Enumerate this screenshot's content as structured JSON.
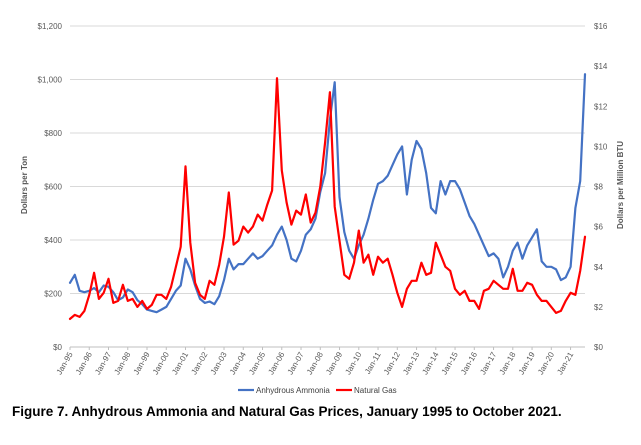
{
  "figure_caption": "Figure 7.  Anhydrous Ammonia and Natural Gas Prices, January 1995 to October 2021.",
  "chart_data": {
    "type": "line",
    "title": "",
    "ylabel_left": "Dollars per Ton",
    "ylabel_right": "Dollars per Million BTU",
    "ylim_left": [
      0,
      1200
    ],
    "ylim_right": [
      0,
      16
    ],
    "yticks_left": [
      "$0",
      "$200",
      "$400",
      "$600",
      "$800",
      "$1,000",
      "$1,200"
    ],
    "yticks_right": [
      "$0",
      "$2",
      "$4",
      "$6",
      "$8",
      "$10",
      "$12",
      "$14",
      "$16"
    ],
    "xticks": [
      "Jan-95",
      "Jan-96",
      "Jan-97",
      "Jan-98",
      "Jan-99",
      "Jan-00",
      "Jan-01",
      "Jan-02",
      "Jan-03",
      "Jan-04",
      "Jan-05",
      "Jan-06",
      "Jan-07",
      "Jan-08",
      "Jan-09",
      "Jan-10",
      "Jan-11",
      "Jan-12",
      "Jan-13",
      "Jan-14",
      "Jan-15",
      "Jan-16",
      "Jan-17",
      "Jan-18",
      "Jan-19",
      "Jan-20",
      "Jan-21"
    ],
    "x_start": "1995-01",
    "x_end": "2021-10",
    "grid": "horizontal",
    "legend_position": "bottom",
    "series": [
      {
        "name": "Anhydrous Ammonia",
        "axis": "left",
        "color": "#4472C4",
        "points": [
          [
            "1995-01",
            240
          ],
          [
            "1995-04",
            270
          ],
          [
            "1995-07",
            210
          ],
          [
            "1995-10",
            205
          ],
          [
            "1996-01",
            210
          ],
          [
            "1996-04",
            220
          ],
          [
            "1996-07",
            205
          ],
          [
            "1996-10",
            230
          ],
          [
            "1997-01",
            225
          ],
          [
            "1997-04",
            205
          ],
          [
            "1997-07",
            175
          ],
          [
            "1997-10",
            185
          ],
          [
            "1998-01",
            215
          ],
          [
            "1998-04",
            205
          ],
          [
            "1998-07",
            175
          ],
          [
            "1998-10",
            160
          ],
          [
            "1999-01",
            140
          ],
          [
            "1999-04",
            135
          ],
          [
            "1999-07",
            130
          ],
          [
            "1999-10",
            140
          ],
          [
            "2000-01",
            150
          ],
          [
            "2000-04",
            180
          ],
          [
            "2000-07",
            210
          ],
          [
            "2000-10",
            230
          ],
          [
            "2001-01",
            330
          ],
          [
            "2001-04",
            290
          ],
          [
            "2001-07",
            230
          ],
          [
            "2001-10",
            180
          ],
          [
            "2002-01",
            165
          ],
          [
            "2002-04",
            170
          ],
          [
            "2002-07",
            160
          ],
          [
            "2002-10",
            190
          ],
          [
            "2003-01",
            250
          ],
          [
            "2003-04",
            330
          ],
          [
            "2003-07",
            290
          ],
          [
            "2003-10",
            310
          ],
          [
            "2004-01",
            310
          ],
          [
            "2004-04",
            330
          ],
          [
            "2004-07",
            350
          ],
          [
            "2004-10",
            330
          ],
          [
            "2005-01",
            340
          ],
          [
            "2005-04",
            360
          ],
          [
            "2005-07",
            380
          ],
          [
            "2005-10",
            420
          ],
          [
            "2006-01",
            450
          ],
          [
            "2006-04",
            400
          ],
          [
            "2006-07",
            330
          ],
          [
            "2006-10",
            320
          ],
          [
            "2007-01",
            360
          ],
          [
            "2007-04",
            420
          ],
          [
            "2007-07",
            440
          ],
          [
            "2007-10",
            480
          ],
          [
            "2008-01",
            580
          ],
          [
            "2008-04",
            650
          ],
          [
            "2008-07",
            850
          ],
          [
            "2008-10",
            990
          ],
          [
            "2009-01",
            560
          ],
          [
            "2009-04",
            430
          ],
          [
            "2009-07",
            360
          ],
          [
            "2009-10",
            330
          ],
          [
            "2010-01",
            380
          ],
          [
            "2010-04",
            420
          ],
          [
            "2010-07",
            480
          ],
          [
            "2010-10",
            550
          ],
          [
            "2011-01",
            610
          ],
          [
            "2011-04",
            620
          ],
          [
            "2011-07",
            640
          ],
          [
            "2011-10",
            680
          ],
          [
            "2012-01",
            720
          ],
          [
            "2012-04",
            750
          ],
          [
            "2012-07",
            570
          ],
          [
            "2012-10",
            700
          ],
          [
            "2013-01",
            770
          ],
          [
            "2013-04",
            740
          ],
          [
            "2013-07",
            650
          ],
          [
            "2013-10",
            520
          ],
          [
            "2014-01",
            500
          ],
          [
            "2014-04",
            620
          ],
          [
            "2014-07",
            570
          ],
          [
            "2014-10",
            620
          ],
          [
            "2015-01",
            620
          ],
          [
            "2015-04",
            590
          ],
          [
            "2015-07",
            540
          ],
          [
            "2015-10",
            490
          ],
          [
            "2016-01",
            460
          ],
          [
            "2016-04",
            420
          ],
          [
            "2016-07",
            380
          ],
          [
            "2016-10",
            340
          ],
          [
            "2017-01",
            350
          ],
          [
            "2017-04",
            330
          ],
          [
            "2017-07",
            260
          ],
          [
            "2017-10",
            300
          ],
          [
            "2018-01",
            360
          ],
          [
            "2018-04",
            390
          ],
          [
            "2018-07",
            330
          ],
          [
            "2018-10",
            380
          ],
          [
            "2019-01",
            410
          ],
          [
            "2019-04",
            440
          ],
          [
            "2019-07",
            320
          ],
          [
            "2019-10",
            300
          ],
          [
            "2020-01",
            300
          ],
          [
            "2020-04",
            290
          ],
          [
            "2020-07",
            250
          ],
          [
            "2020-10",
            260
          ],
          [
            "2021-01",
            300
          ],
          [
            "2021-04",
            520
          ],
          [
            "2021-07",
            620
          ],
          [
            "2021-10",
            1020
          ]
        ]
      },
      {
        "name": "Natural Gas",
        "axis": "right",
        "color": "#FF0000",
        "points": [
          [
            "1995-01",
            1.4
          ],
          [
            "1995-04",
            1.6
          ],
          [
            "1995-07",
            1.5
          ],
          [
            "1995-10",
            1.8
          ],
          [
            "1996-01",
            2.6
          ],
          [
            "1996-04",
            3.7
          ],
          [
            "1996-07",
            2.4
          ],
          [
            "1996-10",
            2.7
          ],
          [
            "1997-01",
            3.4
          ],
          [
            "1997-04",
            2.2
          ],
          [
            "1997-07",
            2.3
          ],
          [
            "1997-10",
            3.1
          ],
          [
            "1998-01",
            2.3
          ],
          [
            "1998-04",
            2.4
          ],
          [
            "1998-07",
            2.0
          ],
          [
            "1998-10",
            2.3
          ],
          [
            "1999-01",
            1.9
          ],
          [
            "1999-04",
            2.1
          ],
          [
            "1999-07",
            2.6
          ],
          [
            "1999-10",
            2.6
          ],
          [
            "2000-01",
            2.4
          ],
          [
            "2000-04",
            3.0
          ],
          [
            "2000-07",
            4.0
          ],
          [
            "2000-10",
            5.0
          ],
          [
            "2001-01",
            9.0
          ],
          [
            "2001-04",
            5.2
          ],
          [
            "2001-07",
            3.2
          ],
          [
            "2001-10",
            2.6
          ],
          [
            "2002-01",
            2.4
          ],
          [
            "2002-04",
            3.3
          ],
          [
            "2002-07",
            3.1
          ],
          [
            "2002-10",
            4.1
          ],
          [
            "2003-01",
            5.5
          ],
          [
            "2003-04",
            7.7
          ],
          [
            "2003-07",
            5.1
          ],
          [
            "2003-10",
            5.3
          ],
          [
            "2004-01",
            6.0
          ],
          [
            "2004-04",
            5.7
          ],
          [
            "2004-07",
            6.0
          ],
          [
            "2004-10",
            6.6
          ],
          [
            "2005-01",
            6.3
          ],
          [
            "2005-04",
            7.1
          ],
          [
            "2005-07",
            7.8
          ],
          [
            "2005-10",
            13.4
          ],
          [
            "2006-01",
            8.8
          ],
          [
            "2006-04",
            7.2
          ],
          [
            "2006-07",
            6.1
          ],
          [
            "2006-10",
            6.8
          ],
          [
            "2007-01",
            6.6
          ],
          [
            "2007-04",
            7.6
          ],
          [
            "2007-07",
            6.2
          ],
          [
            "2007-10",
            6.7
          ],
          [
            "2008-01",
            8.0
          ],
          [
            "2008-04",
            10.2
          ],
          [
            "2008-07",
            12.7
          ],
          [
            "2008-10",
            7.0
          ],
          [
            "2009-01",
            5.3
          ],
          [
            "2009-04",
            3.6
          ],
          [
            "2009-07",
            3.4
          ],
          [
            "2009-10",
            4.2
          ],
          [
            "2010-01",
            5.8
          ],
          [
            "2010-04",
            4.2
          ],
          [
            "2010-07",
            4.6
          ],
          [
            "2010-10",
            3.6
          ],
          [
            "2011-01",
            4.5
          ],
          [
            "2011-04",
            4.2
          ],
          [
            "2011-07",
            4.4
          ],
          [
            "2011-10",
            3.6
          ],
          [
            "2012-01",
            2.7
          ],
          [
            "2012-04",
            2.0
          ],
          [
            "2012-07",
            2.9
          ],
          [
            "2012-10",
            3.3
          ],
          [
            "2013-01",
            3.3
          ],
          [
            "2013-04",
            4.2
          ],
          [
            "2013-07",
            3.6
          ],
          [
            "2013-10",
            3.7
          ],
          [
            "2014-01",
            5.2
          ],
          [
            "2014-04",
            4.6
          ],
          [
            "2014-07",
            4.0
          ],
          [
            "2014-10",
            3.8
          ],
          [
            "2015-01",
            2.9
          ],
          [
            "2015-04",
            2.6
          ],
          [
            "2015-07",
            2.8
          ],
          [
            "2015-10",
            2.3
          ],
          [
            "2016-01",
            2.3
          ],
          [
            "2016-04",
            1.9
          ],
          [
            "2016-07",
            2.8
          ],
          [
            "2016-10",
            2.9
          ],
          [
            "2017-01",
            3.3
          ],
          [
            "2017-04",
            3.1
          ],
          [
            "2017-07",
            2.9
          ],
          [
            "2017-10",
            2.9
          ],
          [
            "2018-01",
            3.9
          ],
          [
            "2018-04",
            2.8
          ],
          [
            "2018-07",
            2.8
          ],
          [
            "2018-10",
            3.2
          ],
          [
            "2019-01",
            3.1
          ],
          [
            "2019-04",
            2.6
          ],
          [
            "2019-07",
            2.3
          ],
          [
            "2019-10",
            2.3
          ],
          [
            "2020-01",
            2.0
          ],
          [
            "2020-04",
            1.7
          ],
          [
            "2020-07",
            1.8
          ],
          [
            "2020-10",
            2.3
          ],
          [
            "2021-01",
            2.7
          ],
          [
            "2021-04",
            2.6
          ],
          [
            "2021-07",
            3.8
          ],
          [
            "2021-10",
            5.5
          ]
        ]
      }
    ]
  }
}
